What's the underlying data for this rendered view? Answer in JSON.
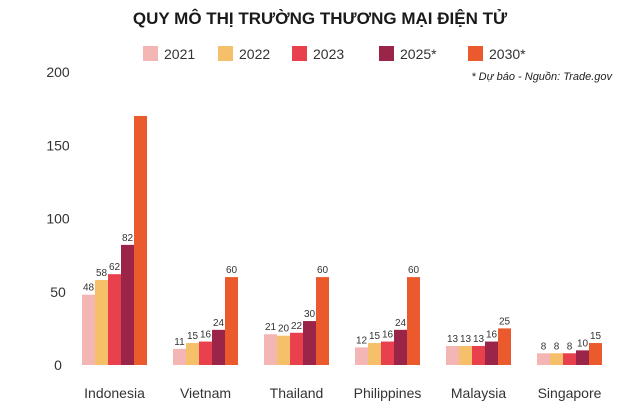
{
  "chart_data": {
    "type": "bar",
    "title": "QUY MÔ THỊ TRƯỜNG THƯƠNG MẠI ĐIỆN TỬ",
    "source_note": "* Dự báo - Nguồn: Trade.gov",
    "categories": [
      "Indonesia",
      "Vietnam",
      "Thailand",
      "Philippines",
      "Malaysia",
      "Singapore"
    ],
    "yticks": [
      "0",
      "50",
      "100",
      "150",
      "200"
    ],
    "ylim": [
      0,
      200
    ],
    "series": [
      {
        "name": "2021",
        "color": "#f4b6b4",
        "values": [
          48,
          11,
          21,
          12,
          13,
          8
        ]
      },
      {
        "name": "2022",
        "color": "#f6c06a",
        "values": [
          58,
          15,
          20,
          15,
          13,
          8
        ]
      },
      {
        "name": "2023",
        "color": "#e8404c",
        "values": [
          62,
          16,
          22,
          16,
          13,
          8
        ]
      },
      {
        "name": "2025*",
        "color": "#9b2548",
        "values": [
          82,
          24,
          30,
          24,
          16,
          10
        ]
      },
      {
        "name": "2030*",
        "color": "#ea5a2d",
        "values": [
          170,
          60,
          60,
          60,
          25,
          15
        ]
      }
    ],
    "data_labels": [
      [
        "48",
        "58",
        "62",
        "82",
        ""
      ],
      [
        "11",
        "15",
        "16",
        "24",
        "60"
      ],
      [
        "21",
        "20",
        "22",
        "30",
        "60"
      ],
      [
        "12",
        "15",
        "16",
        "24",
        "60"
      ],
      [
        "13",
        "13",
        "13",
        "16",
        "25"
      ],
      [
        "8",
        "8",
        "8",
        "10",
        "15"
      ]
    ],
    "grid": false,
    "legend_position": "top"
  }
}
